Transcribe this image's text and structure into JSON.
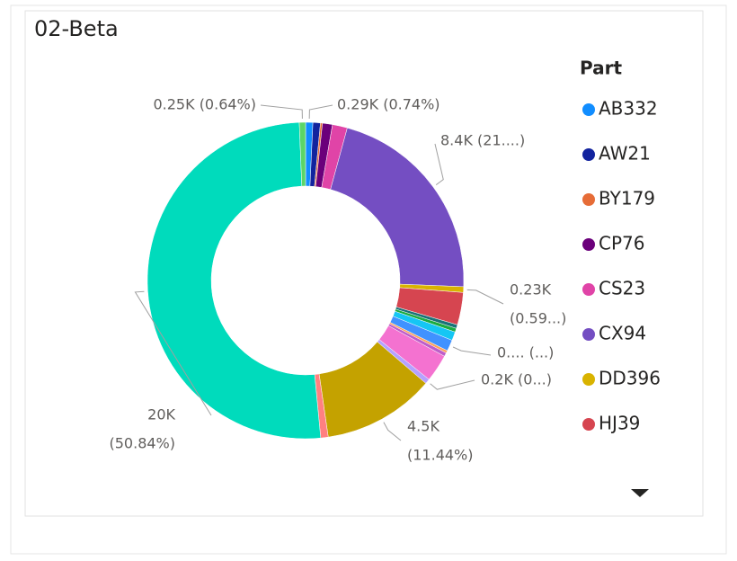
{
  "chart_data": {
    "type": "donut",
    "title": "02-Beta",
    "legend_title": "Part",
    "categories": [
      "AB332",
      "AW21",
      "BY179",
      "CP76",
      "CS23",
      "CX94",
      "DD396",
      "HJ39",
      null,
      null,
      null,
      null,
      null,
      null,
      null,
      null,
      null,
      null,
      null,
      null
    ],
    "values": [
      290,
      300,
      80,
      400,
      600,
      8400,
      230,
      1300,
      150,
      150,
      350,
      450,
      100,
      150,
      1100,
      200,
      4500,
      300,
      20000,
      250
    ],
    "value_labels": [
      [
        "0.29K (0.74%)"
      ],
      null,
      null,
      null,
      null,
      [
        "8.4K (21....)"
      ],
      [
        "0.23K",
        "(0.59...)"
      ],
      null,
      null,
      null,
      null,
      [
        "0.... (...)"
      ],
      null,
      null,
      null,
      [
        "0.2K (0...)"
      ],
      [
        "4.5K",
        "(11.44%)"
      ],
      null,
      [
        "20K",
        "(50.84%)"
      ],
      [
        "0.25K (0.64%)"
      ]
    ],
    "colors": [
      "#118DFF",
      "#12239E",
      "#E66C37",
      "#6B007B",
      "#E044A7",
      "#744EC2",
      "#D9B300",
      "#D64550",
      "#197278",
      "#1AAB40",
      "#15C6F4",
      "#4092FF",
      "#FFA058",
      "#BE5DC9",
      "#F472D0",
      "#B5A1FF",
      "#C4A200",
      "#FF8080",
      "#00DBBC",
      "#5BD667"
    ]
  }
}
